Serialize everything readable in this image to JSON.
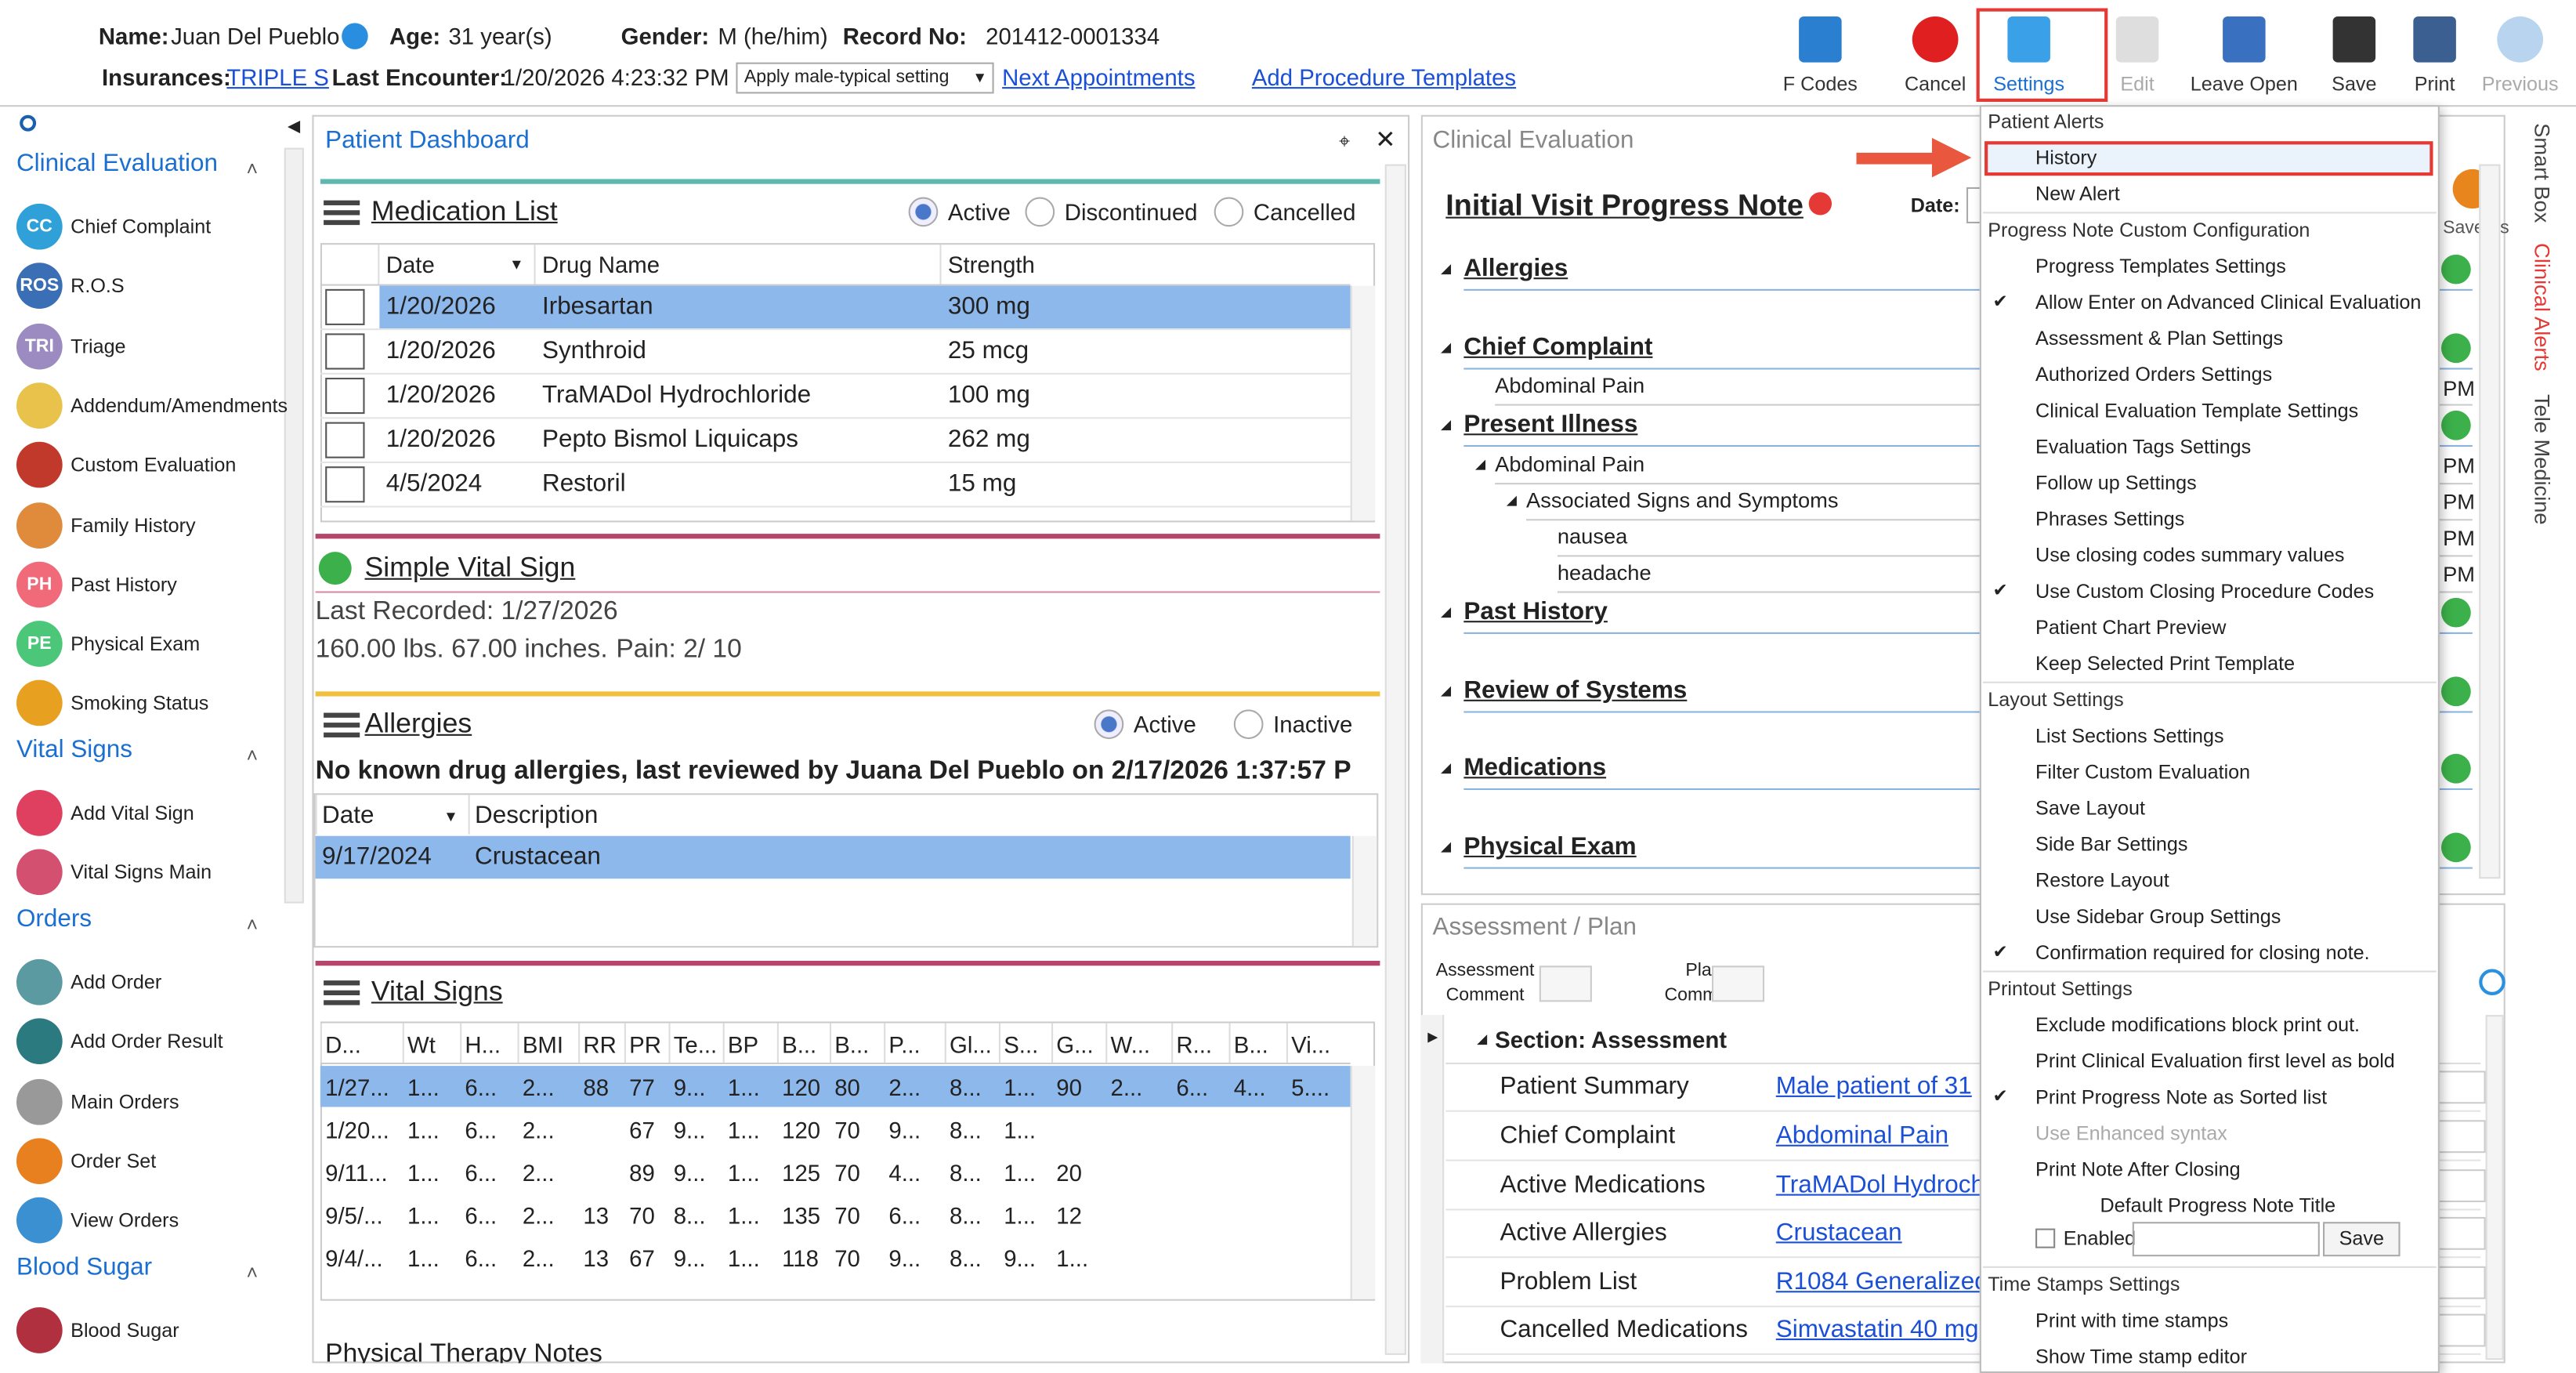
{
  "patient_header": {
    "name_label": "Name:",
    "name": "Juan Del Pueblo",
    "age_label": "Age:",
    "age": "31 year(s)",
    "gender_label": "Gender:",
    "gender": "M (he/him)",
    "record_label": "Record No:",
    "record": "201412-0001334",
    "insurances_label": "Insurances:",
    "insurance": "TRIPLE S",
    "last_encounter_label": "Last Encounter:",
    "last_encounter": "1/20/2026 4:23:32 PM",
    "setting_select": "Apply male-typical setting",
    "links": [
      "Next Appointments",
      "Add Procedure Templates"
    ]
  },
  "toolbar": [
    "F Codes",
    "Cancel",
    "Settings",
    "Edit",
    "Leave Open",
    "Save",
    "Print",
    "Previous"
  ],
  "sidebar": {
    "groups": [
      {
        "title": "Clinical Evaluation",
        "items": [
          {
            "badge": "CC",
            "label": "Chief Complaint"
          },
          {
            "badge": "ROS",
            "label": "R.O.S"
          },
          {
            "badge": "TRI",
            "label": "Triage"
          },
          {
            "label": "Addendum/Amendments"
          },
          {
            "label": "Custom Evaluation"
          },
          {
            "label": "Family History"
          },
          {
            "badge": "PH",
            "label": "Past History"
          },
          {
            "badge": "PE",
            "label": "Physical Exam"
          },
          {
            "label": "Smoking Status"
          }
        ]
      },
      {
        "title": "Vital Signs",
        "items": [
          {
            "label": "Add Vital Sign"
          },
          {
            "label": "Vital Signs Main"
          }
        ]
      },
      {
        "title": "Orders",
        "items": [
          {
            "label": "Add Order"
          },
          {
            "label": "Add Order Result"
          },
          {
            "label": "Main Orders"
          },
          {
            "label": "Order Set"
          },
          {
            "label": "View Orders"
          }
        ]
      },
      {
        "title": "Blood Sugar",
        "items": [
          {
            "label": "Blood Sugar"
          }
        ]
      }
    ]
  },
  "dashboard": {
    "title": "Patient Dashboard",
    "medication_list": {
      "title": "Medication List",
      "filters": [
        "Active",
        "Discontinued",
        "Cancelled"
      ],
      "columns": [
        "Date",
        "Drug Name",
        "Strength"
      ],
      "rows": [
        [
          "1/20/2026",
          "Irbesartan",
          "300 mg"
        ],
        [
          "1/20/2026",
          "Synthroid",
          "25 mcg"
        ],
        [
          "1/20/2026",
          "TraMADol Hydrochloride",
          "100 mg"
        ],
        [
          "1/20/2026",
          "Pepto Bismol Liquicaps",
          "262 mg"
        ],
        [
          "4/5/2024",
          "Restoril",
          "15 mg"
        ]
      ]
    },
    "simple_vital_sign": {
      "title": "Simple Vital Sign",
      "last_recorded": "Last Recorded: 1/27/2026",
      "measures": "160.00 lbs. 67.00 inches.",
      "pain": "Pain: 2/ 10"
    },
    "allergies": {
      "title": "Allergies",
      "filters": [
        "Active",
        "Inactive"
      ],
      "note": "No known drug allergies, last reviewed by Juana Del Pueblo on 2/17/2026 1:37:57 P",
      "columns": [
        "Date",
        "Description"
      ],
      "rows": [
        [
          "9/17/2024",
          "Crustacean"
        ]
      ]
    },
    "vital_signs": {
      "title": "Vital Signs",
      "columns": [
        "D...",
        "Wt",
        "H...",
        "BMI",
        "RR",
        "PR",
        "Te...",
        "BP",
        "B...",
        "B...",
        "P...",
        "Gl...",
        "S...",
        "G...",
        "W...",
        "R...",
        "B...",
        "Vi..."
      ],
      "rows": [
        [
          "1/27...",
          "1...",
          "6...",
          "2...",
          "88",
          "77",
          "9...",
          "1...",
          "120",
          "80",
          "2...",
          "8...",
          "1...",
          "90",
          "2...",
          "6...",
          "4...",
          "5...."
        ],
        [
          "1/20...",
          "1...",
          "6...",
          "2...",
          null,
          "67",
          "9...",
          "1...",
          "120",
          "70",
          "9...",
          "8...",
          "1..."
        ],
        [
          "9/11...",
          "1...",
          "6...",
          "2...",
          null,
          "89",
          "9...",
          "1...",
          "125",
          "70",
          "4...",
          "8...",
          "1...",
          "20"
        ],
        [
          "9/5/...",
          "1...",
          "6...",
          "2...",
          "13",
          "70",
          "8...",
          "1...",
          "135",
          "70",
          "6...",
          "8...",
          "1...",
          "12"
        ],
        [
          "9/4/...",
          "1...",
          "6...",
          "2...",
          "13",
          "67",
          "9...",
          "1...",
          "118",
          "70",
          "9...",
          "8...",
          "9...",
          "1..."
        ]
      ]
    },
    "physical_therapy_notes": "Physical Therapy Notes"
  },
  "clinical_evaluation": {
    "title": "Clinical Evaluation",
    "note_title": "Initial Visit Progress Note",
    "date_label": "Date:",
    "save_as": "Save As",
    "sections": [
      {
        "title": "Allergies"
      },
      {
        "title": "Chief Complaint",
        "children": [
          "Abdominal Pain"
        ]
      },
      {
        "title": "Present Illness",
        "children": [
          "Abdominal Pain",
          "Associated Signs and Symptoms",
          "nausea",
          "headache"
        ]
      },
      {
        "title": "Past History"
      },
      {
        "title": "Review of Systems"
      },
      {
        "title": "Medications"
      },
      {
        "title": "Physical Exam"
      }
    ],
    "times": [
      "PM",
      "PM",
      "PM",
      "PM",
      "PM"
    ]
  },
  "assessment_plan": {
    "title": "Assessment / Plan",
    "assessment_comment": [
      "Assessment",
      "Comment"
    ],
    "plan_comment": [
      "Plan",
      "Comment"
    ],
    "section": "Section: Assessment",
    "rows": [
      [
        "Patient Summary",
        "Male patient of 31"
      ],
      [
        "Chief Complaint",
        "Abdominal Pain"
      ],
      [
        "Active Medications",
        "TraMADol Hydroch"
      ],
      [
        "Active Allergies",
        "Crustacean"
      ],
      [
        "Problem List",
        "R1084 Generalized"
      ],
      [
        "Cancelled Medications",
        "Simvastatin 40 mg"
      ]
    ]
  },
  "side_tabs": [
    "Smart Box",
    "Clinical Alerts",
    "Tele Medicine"
  ],
  "settings_menu": {
    "sections": [
      {
        "title": "Patient Alerts",
        "items": [
          {
            "label": "History",
            "highlighted": true
          },
          {
            "label": "New Alert"
          }
        ]
      },
      {
        "title": "Progress Note Custom Configuration",
        "items": [
          {
            "label": "Progress Templates Settings"
          },
          {
            "label": "Allow Enter on Advanced Clinical Evaluation",
            "checked": true
          },
          {
            "label": "Assessment & Plan Settings"
          },
          {
            "label": "Authorized Orders Settings"
          },
          {
            "label": "Clinical Evaluation Template Settings"
          },
          {
            "label": "Evaluation Tags Settings"
          },
          {
            "label": "Follow up Settings"
          },
          {
            "label": "Phrases Settings"
          },
          {
            "label": "Use closing codes summary values"
          },
          {
            "label": "Use Custom Closing Procedure Codes",
            "checked": true
          },
          {
            "label": "Patient Chart Preview"
          },
          {
            "label": "Keep Selected Print Template"
          }
        ]
      },
      {
        "title": "Layout Settings",
        "items": [
          {
            "label": "List Sections Settings"
          },
          {
            "label": "Filter Custom Evaluation"
          },
          {
            "label": "Save Layout"
          },
          {
            "label": "Side Bar Settings"
          },
          {
            "label": "Restore Layout"
          },
          {
            "label": "Use Sidebar Group Settings"
          },
          {
            "label": "Confirmation required for closing note.",
            "checked": true
          }
        ]
      },
      {
        "title": "Printout Settings",
        "items": [
          {
            "label": "Exclude modifications block print out."
          },
          {
            "label": "Print Clinical Evaluation first level as bold"
          },
          {
            "label": "Print Progress Note as Sorted list",
            "checked": true
          },
          {
            "label": "Use Enhanced syntax",
            "disabled": true
          },
          {
            "label": "Print Note After Closing"
          }
        ],
        "default_title": {
          "label": "Default Progress Note Title",
          "checkbox": {
            "label": "Enabled",
            "checked": false
          },
          "button": "Save"
        }
      },
      {
        "title": "Time Stamps Settings",
        "items": [
          {
            "label": "Print with time stamps"
          },
          {
            "label": "Show Time stamp editor"
          }
        ]
      }
    ]
  }
}
